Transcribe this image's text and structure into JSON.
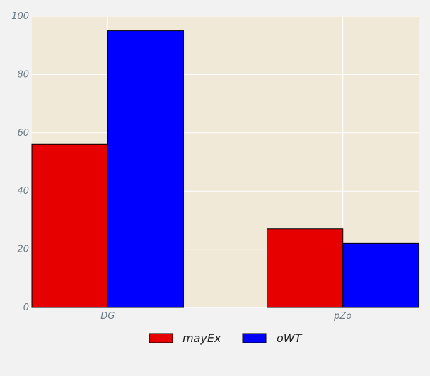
{
  "chart_data": {
    "type": "bar",
    "categories": [
      "DG",
      "pZo"
    ],
    "series": [
      {
        "name": "mayEx",
        "values": [
          56,
          27
        ],
        "color": "#e60000"
      },
      {
        "name": "oWT",
        "values": [
          95,
          22
        ],
        "color": "#0000ff"
      }
    ],
    "ylim": [
      0,
      100
    ],
    "yticks": [
      "0",
      "20",
      "40",
      "60",
      "80",
      "100"
    ],
    "grid": true,
    "legend_position": "bottom-center",
    "plot_background": "#f0e9d8",
    "page_background": "#f2f2f2"
  }
}
